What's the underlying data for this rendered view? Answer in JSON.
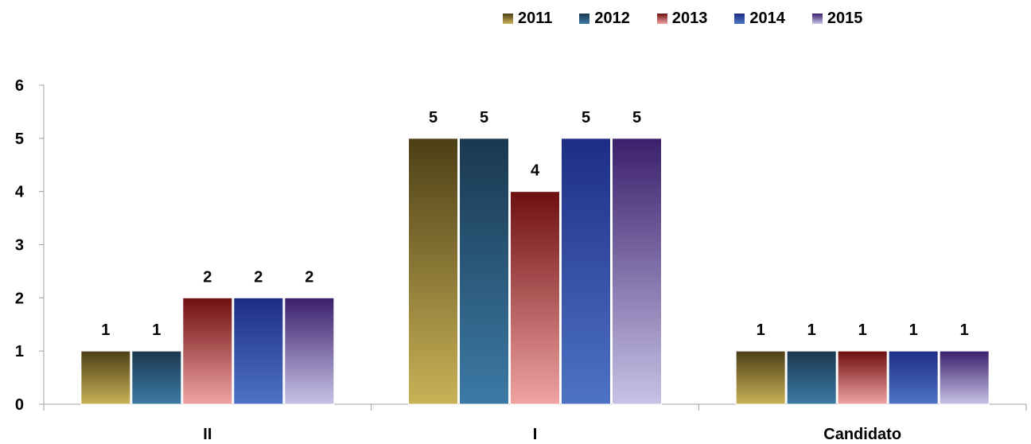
{
  "chart_data": {
    "type": "bar",
    "categories": [
      "II",
      "I",
      "Candidato"
    ],
    "series": [
      {
        "name": "2011",
        "values": [
          1,
          5,
          1
        ],
        "color_top": "#4d3f16",
        "color_bottom": "#c9b257"
      },
      {
        "name": "2012",
        "values": [
          1,
          5,
          1
        ],
        "color_top": "#1a3850",
        "color_bottom": "#3c7aa5"
      },
      {
        "name": "2013",
        "values": [
          2,
          4,
          1
        ],
        "color_top": "#6e0f10",
        "color_bottom": "#f0a3a3"
      },
      {
        "name": "2014",
        "values": [
          2,
          5,
          1
        ],
        "color_top": "#1d2d86",
        "color_bottom": "#4e73c5"
      },
      {
        "name": "2015",
        "values": [
          2,
          5,
          1
        ],
        "color_top": "#3b1f6b",
        "color_bottom": "#c7c2e6"
      }
    ],
    "ylim": [
      0,
      6
    ],
    "yticks": [
      0,
      1,
      2,
      3,
      4,
      5,
      6
    ],
    "data_labels": true,
    "legend_position": "top-right",
    "grid": false
  }
}
